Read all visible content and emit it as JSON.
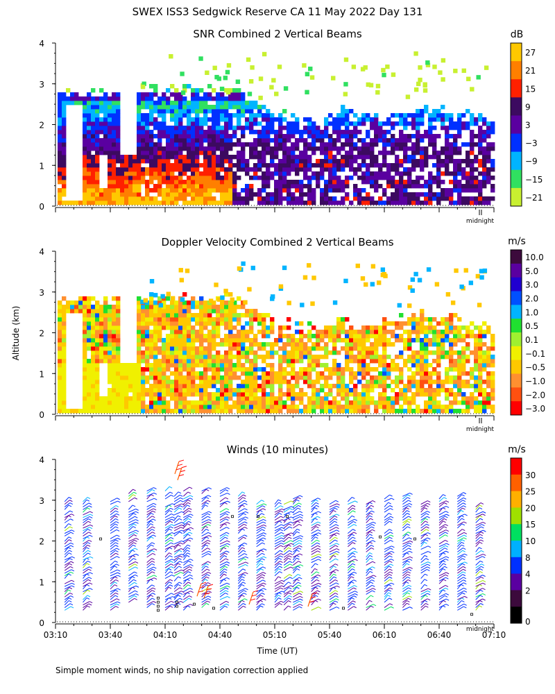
{
  "figure": {
    "title": "SWEX ISS3 Sedgwick Reserve CA  11 May 2022 Day 131",
    "y_axis_label": "Altitude (km)",
    "x_axis_label": "Time (UT)",
    "footnote": "Simple moment winds, no ship navigation correction applied",
    "midnight_label": "midnight"
  },
  "chart_data": [
    {
      "type": "heatmap",
      "title": "SNR Combined 2 Vertical Beams",
      "ylim": [
        0,
        4
      ],
      "yticks": [
        "0",
        "1",
        "2",
        "3",
        "4"
      ],
      "x_range": [
        "03:10",
        "07:10"
      ],
      "colorbar": {
        "unit": "dB",
        "levels": [
          "27",
          "21",
          "15",
          "9",
          "3",
          "−3",
          "−9",
          "−15",
          "−21"
        ],
        "colors": [
          "#ffc800",
          "#ff7f00",
          "#ff2000",
          "#3c0a60",
          "#5a00a0",
          "#0030ff",
          "#00b4ff",
          "#30e060",
          "#c8f030"
        ]
      },
      "profile_db_by_altitude": [
        {
          "altitude_km": 0.3,
          "snr_db": 24
        },
        {
          "altitude_km": 0.6,
          "snr_db": 12
        },
        {
          "altitude_km": 1.0,
          "snr_db": 6
        },
        {
          "altitude_km": 1.5,
          "snr_db": 0
        },
        {
          "altitude_km": 2.0,
          "snr_db": -6
        },
        {
          "altitude_km": 2.5,
          "snr_db": -12
        },
        {
          "altitude_km": 2.8,
          "snr_db": -18
        }
      ]
    },
    {
      "type": "heatmap",
      "title": "Doppler Velocity Combined 2 Vertical Beams",
      "ylim": [
        0,
        4
      ],
      "yticks": [
        "0",
        "1",
        "2",
        "3",
        "4"
      ],
      "x_range": [
        "03:10",
        "07:10"
      ],
      "colorbar": {
        "unit": "m/s",
        "levels": [
          "10.0",
          "5.0",
          "3.0",
          "2.0",
          "1.0",
          "0.5",
          "0.1",
          "−0.1",
          "−0.5",
          "−1.0",
          "−2.0",
          "−3.0"
        ],
        "colors": [
          "#3c0a3c",
          "#5a00a0",
          "#2000d0",
          "#0050ff",
          "#00b4ff",
          "#20e030",
          "#a0f030",
          "#f0f000",
          "#ffc800",
          "#ff9030",
          "#ff5010",
          "#ff0000"
        ]
      }
    },
    {
      "type": "scatter",
      "title": "Winds (10 minutes)",
      "ylim": [
        0,
        4
      ],
      "yticks": [
        "0",
        "1",
        "2",
        "3",
        "4"
      ],
      "xticks": [
        "03:10",
        "03:40",
        "04:10",
        "04:40",
        "05:10",
        "05:40",
        "06:10",
        "06:40",
        "07:10"
      ],
      "colorbar": {
        "unit": "m/s",
        "levels": [
          "30",
          "25",
          "20",
          "15",
          "10",
          "8",
          "4",
          "2",
          "0"
        ],
        "colors": [
          "#ff0000",
          "#ff6000",
          "#ffb000",
          "#a0e000",
          "#00e060",
          "#00b0ff",
          "#0030ff",
          "#5a00a0",
          "#3c0a3c",
          "#000000"
        ]
      },
      "profile_times": [
        "03:15",
        "03:25",
        "03:40",
        "03:50",
        "04:00",
        "04:10",
        "04:15",
        "04:20",
        "04:30",
        "04:40",
        "04:50",
        "05:00",
        "05:10",
        "05:15",
        "05:20",
        "05:30",
        "05:40",
        "05:50",
        "06:00",
        "06:10",
        "06:20",
        "06:30",
        "06:40",
        "06:50",
        "07:00"
      ]
    }
  ]
}
